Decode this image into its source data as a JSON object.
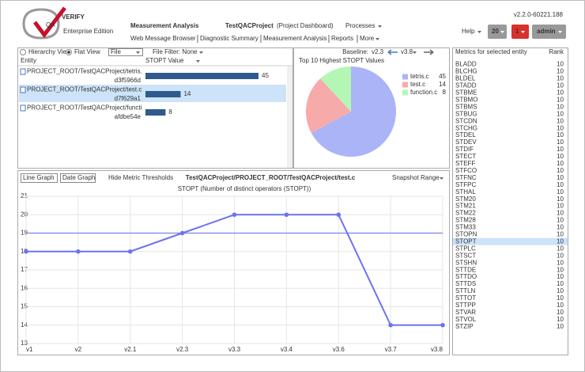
{
  "header": {
    "logo_mark": "QA",
    "logo": "VERIFY",
    "edition": "Enterprise Edition",
    "app_title": "Measurement Analysis",
    "project": "TestQACProject",
    "project_note": "(Project Dashboard)",
    "processes": "Processes",
    "version": "v2.2.0-60221.188",
    "help": "Help",
    "count_a": "20",
    "count_b": "1",
    "user": "admin",
    "nav": [
      "Web Message Browser",
      "Diagnostic Summary",
      "Measurement Analysis",
      "Reports",
      "More"
    ],
    "nav_active": 2
  },
  "toolbar": {
    "hierarchy": "Hierarchy View",
    "flat": "Flat View",
    "file_select": "File",
    "filter": "File Filter: None",
    "baseline_label": "Baseline:",
    "baseline": "v2.3",
    "compare": "v3.8"
  },
  "entities": {
    "columns": [
      "Entity",
      "STOPT Value"
    ],
    "selected_row": 1,
    "bar_color": "#2e5a8e",
    "rows": [
      {
        "name": "PROJECT_ROOT/TestQACProject/tetris.",
        "hash": "d3f5966d",
        "value": 45
      },
      {
        "name": "PROJECT_ROOT/TestQACProject/test.c",
        "hash": "d7f629a1",
        "value": 14
      },
      {
        "name": "PROJECT_ROOT/TestQACProject/functi",
        "hash": "afdbe54e",
        "value": 8
      }
    ]
  },
  "graph_panel": {
    "tabs": [
      "Line Graph",
      "Date Graph"
    ],
    "hide_thresholds": "Hide Metric Thresholds",
    "path": "TestQACProject/PROJECT_ROOT/TestQACProject/test.c",
    "range": "Snapshot Range"
  },
  "chart_data": [
    {
      "type": "pie",
      "title": "Top 10 Highest STOPT Values",
      "categories": [
        "tetris.c",
        "test.c",
        "function.c"
      ],
      "values": [
        45,
        14,
        8
      ],
      "colors": [
        "#aab4f7",
        "#f7aaaa",
        "#b4f7b4"
      ]
    },
    {
      "type": "line",
      "title": "STOPT (Number of distinct operators (STOPT))",
      "categories": [
        "v1",
        "v2",
        "v2.1",
        "v2.3",
        "v3.3",
        "v3.4",
        "v3.6",
        "v3.7",
        "v3.8"
      ],
      "values": [
        18,
        18,
        18,
        19,
        20,
        20,
        20,
        14,
        14
      ],
      "color": "#6b73f0",
      "threshold": 19,
      "threshold_color": "#7b83e8",
      "ylim": [
        13,
        21
      ],
      "yticks": [
        13,
        14,
        15,
        16,
        17,
        18,
        19,
        20,
        21
      ],
      "grid": true
    }
  ],
  "metrics": {
    "columns": [
      "Metrics for selected entity",
      "Rank"
    ],
    "selected_row": 25,
    "rows": [
      [
        "BLADD",
        10
      ],
      [
        "BLCHG",
        10
      ],
      [
        "BLDEL",
        10
      ],
      [
        "STADD",
        10
      ],
      [
        "STBME",
        10
      ],
      [
        "STBMO",
        10
      ],
      [
        "STBMS",
        10
      ],
      [
        "STBUG",
        10
      ],
      [
        "STCDN",
        10
      ],
      [
        "STCHG",
        10
      ],
      [
        "STDEL",
        10
      ],
      [
        "STDEV",
        10
      ],
      [
        "STDIF",
        10
      ],
      [
        "STECT",
        10
      ],
      [
        "STEFF",
        10
      ],
      [
        "STFCO",
        10
      ],
      [
        "STFNC",
        10
      ],
      [
        "STFPC",
        10
      ],
      [
        "STHAL",
        10
      ],
      [
        "STM20",
        10
      ],
      [
        "STM21",
        10
      ],
      [
        "STM22",
        10
      ],
      [
        "STM28",
        10
      ],
      [
        "STM33",
        10
      ],
      [
        "STOPN",
        10
      ],
      [
        "STOPT",
        10
      ],
      [
        "STPLC",
        10
      ],
      [
        "STSCT",
        10
      ],
      [
        "STSHN",
        10
      ],
      [
        "STTDE",
        10
      ],
      [
        "STTDO",
        10
      ],
      [
        "STTDS",
        10
      ],
      [
        "STTLN",
        10
      ],
      [
        "STTOT",
        10
      ],
      [
        "STTPP",
        10
      ],
      [
        "STVAR",
        10
      ],
      [
        "STVOL",
        10
      ],
      [
        "STZIP",
        10
      ]
    ]
  }
}
